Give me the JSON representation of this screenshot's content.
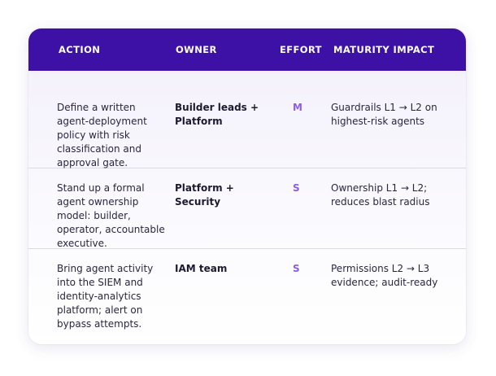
{
  "table": {
    "headers": {
      "action": "ACTION",
      "owner": "OWNER",
      "effort": "EFFORT",
      "impact": "MATURITY IMPACT"
    },
    "rows": [
      {
        "action": "Define a written agent-deployment policy with risk classification and approval gate.",
        "owner": "Builder leads + Platform",
        "effort": "M",
        "impact": "Guardrails L1 → L2 on highest-risk agents"
      },
      {
        "action": "Stand up a formal agent ownership model: builder, operator, accountable executive.",
        "owner": "Platform + Security",
        "effort": "S",
        "impact": "Ownership L1 → L2; reduces blast radius"
      },
      {
        "action": "Bring agent activity into the SIEM and identity-analytics platform; alert on bypass attempts.",
        "owner": "IAM team",
        "effort": "S",
        "impact": "Permissions L2 → L3 evidence; audit-ready"
      }
    ]
  },
  "colors": {
    "header_bg": "#3d10a6",
    "effort_accent": "#8a5cf0"
  }
}
